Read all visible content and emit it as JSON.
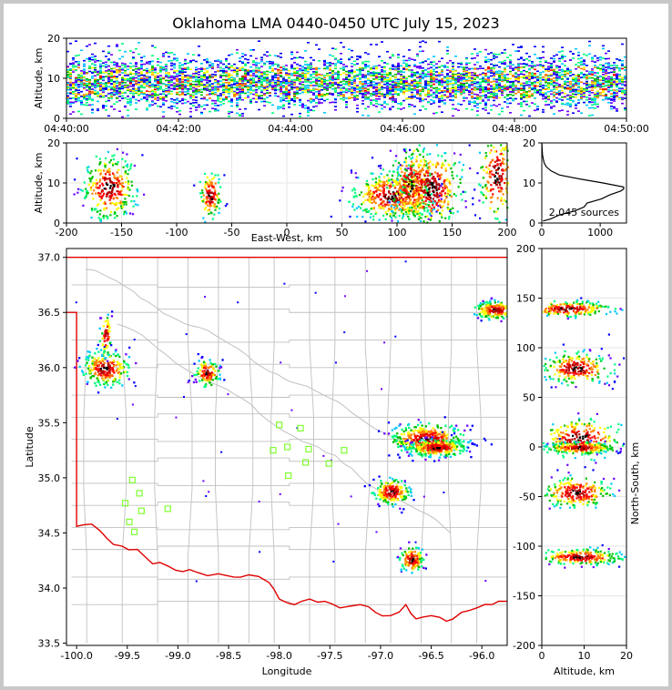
{
  "title": "Oklahoma LMA 0440-0450 UTC July 15, 2023",
  "colors": {
    "density": [
      "#0000ff",
      "#6a00ff",
      "#00c8ff",
      "#00ff80",
      "#00c000",
      "#ffff00",
      "#ff8000",
      "#ff0000",
      "#b00000",
      "#000000"
    ],
    "state_border": "#e00000",
    "county": "#c0c0c0",
    "station": "#80ff30"
  },
  "chart_data": [
    {
      "id": "time-height",
      "type": "heatmap",
      "ylabel": "Altitude, km",
      "xlim": [
        "04:40:00",
        "04:50:00"
      ],
      "ylim": [
        0,
        20
      ],
      "x_ticks": [
        "04:40:00",
        "04:42:00",
        "04:44:00",
        "04:46:00",
        "04:48:00",
        "04:50:00"
      ],
      "y_ticks": [
        0,
        10,
        20
      ],
      "core_altitude_range_km": [
        2,
        14
      ]
    },
    {
      "id": "east-west-altitude",
      "type": "heatmap",
      "xlabel": "East-West, km",
      "ylabel": "Altitude, km",
      "xlim": [
        -200,
        200
      ],
      "ylim": [
        0,
        20
      ],
      "x_ticks": [
        -200,
        -150,
        -100,
        -50,
        0,
        50,
        100,
        150,
        200
      ],
      "y_ticks": [
        0,
        10,
        20
      ],
      "clusters": [
        {
          "x": -162,
          "z": 9,
          "sx": 12,
          "sz": 4
        },
        {
          "x": -70,
          "z": 7,
          "sx": 5,
          "sz": 3
        },
        {
          "x": 95,
          "z": 7,
          "sx": 18,
          "sz": 3
        },
        {
          "x": 112,
          "z": 10,
          "sx": 10,
          "sz": 5
        },
        {
          "x": 130,
          "z": 9,
          "sx": 14,
          "sz": 5
        },
        {
          "x": 190,
          "z": 12,
          "sx": 8,
          "sz": 6
        }
      ]
    },
    {
      "id": "altitude-histogram",
      "type": "line",
      "xlim": [
        0,
        1450
      ],
      "ylim": [
        0,
        20
      ],
      "x_ticks": [
        0,
        1000
      ],
      "y_ticks": [
        0,
        10,
        20
      ],
      "annotation": "2,045 sources",
      "profile": {
        "altitude_km": [
          0.5,
          1,
          2,
          3,
          4,
          5,
          6,
          7,
          8,
          8.5,
          9,
          10,
          11,
          12,
          13,
          14,
          15,
          16,
          17,
          18,
          19,
          20
        ],
        "count": [
          20,
          150,
          300,
          560,
          700,
          800,
          1000,
          1150,
          1380,
          1420,
          1380,
          1050,
          650,
          300,
          160,
          80,
          40,
          25,
          12,
          8,
          4,
          2
        ]
      }
    },
    {
      "id": "plan-view",
      "type": "scatter",
      "xlabel": "Longitude",
      "ylabel": "Latitude",
      "xlim": [
        -100.1,
        -95.75
      ],
      "ylim": [
        33.48,
        37.08
      ],
      "x_ticks": [
        -100.0,
        -99.5,
        -99.0,
        -98.5,
        -98.0,
        -97.5,
        -97.0,
        -96.5,
        -96.0
      ],
      "y_ticks": [
        33.5,
        34.0,
        34.5,
        35.0,
        35.5,
        36.0,
        36.5,
        37.0
      ],
      "stations": [
        {
          "lon": -99.45,
          "lat": 34.98
        },
        {
          "lon": -99.38,
          "lat": 34.86
        },
        {
          "lon": -99.52,
          "lat": 34.77
        },
        {
          "lon": -99.36,
          "lat": 34.7
        },
        {
          "lon": -99.48,
          "lat": 34.6
        },
        {
          "lon": -99.43,
          "lat": 34.51
        },
        {
          "lon": -99.1,
          "lat": 34.72
        },
        {
          "lon": -98.0,
          "lat": 35.48
        },
        {
          "lon": -97.79,
          "lat": 35.45
        },
        {
          "lon": -98.06,
          "lat": 35.25
        },
        {
          "lon": -97.92,
          "lat": 35.28
        },
        {
          "lon": -97.71,
          "lat": 35.26
        },
        {
          "lon": -97.36,
          "lat": 35.25
        },
        {
          "lon": -97.74,
          "lat": 35.14
        },
        {
          "lon": -97.51,
          "lat": 35.13
        },
        {
          "lon": -97.91,
          "lat": 35.02
        }
      ],
      "clusters": [
        {
          "lon": -99.72,
          "lat": 36.0,
          "slon": 0.12,
          "slat": 0.08
        },
        {
          "lon": -99.72,
          "lat": 36.3,
          "slon": 0.03,
          "slat": 0.1
        },
        {
          "lon": -98.72,
          "lat": 35.96,
          "slon": 0.06,
          "slat": 0.06
        },
        {
          "lon": -96.55,
          "lat": 35.36,
          "slon": 0.18,
          "slat": 0.07
        },
        {
          "lon": -96.45,
          "lat": 35.28,
          "slon": 0.14,
          "slat": 0.04
        },
        {
          "lon": -96.9,
          "lat": 34.88,
          "slon": 0.09,
          "slat": 0.06
        },
        {
          "lon": -96.7,
          "lat": 34.27,
          "slon": 0.06,
          "slat": 0.06
        },
        {
          "lon": -95.88,
          "lat": 36.53,
          "slon": 0.1,
          "slat": 0.04
        }
      ]
    },
    {
      "id": "altitude-north-south",
      "type": "heatmap",
      "xlabel": "Altitude, km",
      "ylabel": "North-South, km",
      "xlim": [
        0,
        20
      ],
      "ylim": [
        -200,
        200
      ],
      "x_ticks": [
        0,
        10,
        20
      ],
      "y_ticks": [
        -200,
        -150,
        -100,
        -50,
        0,
        50,
        100,
        150,
        200
      ],
      "clusters": [
        {
          "z": 8,
          "y": 80,
          "sz": 4,
          "sy": 8
        },
        {
          "z": 6,
          "y": 140,
          "sz": 5,
          "sy": 4
        },
        {
          "z": 9,
          "y": 10,
          "sz": 5,
          "sy": 10
        },
        {
          "z": 9,
          "y": 0,
          "sz": 4,
          "sy": 3
        },
        {
          "z": 8,
          "y": -45,
          "sz": 4,
          "sy": 8
        },
        {
          "z": 9,
          "y": -110,
          "sz": 5,
          "sy": 4
        }
      ]
    }
  ]
}
